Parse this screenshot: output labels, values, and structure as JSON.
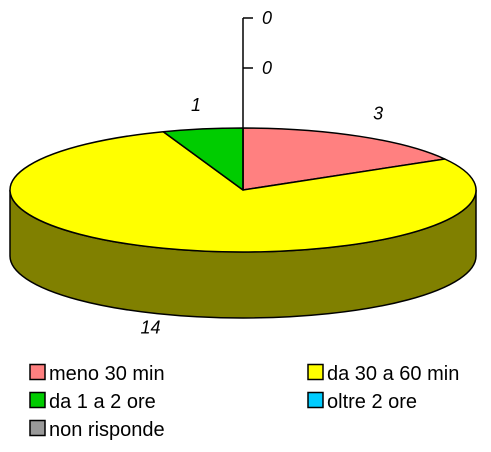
{
  "chart_data": {
    "type": "pie",
    "style": "3d",
    "categories": [
      "meno 30 min",
      "da 30 a 60 min",
      "da 1 a 2 ore",
      "oltre 2 ore",
      "non risponde"
    ],
    "values": [
      3,
      14,
      1,
      0,
      0
    ],
    "data_labels": [
      "3",
      "14",
      "1",
      "0",
      "0"
    ],
    "legend": {
      "placement": "bottom",
      "entries": [
        "meno 30 min",
        "da 30 a 60 min",
        "da 1 a 2 ore",
        "oltre 2 ore",
        "non risponde"
      ]
    },
    "colors": {
      "meno 30 min": "#ff8080",
      "da 30 a 60 min": "#ffff00",
      "da 1 a 2 ore": "#00cc00",
      "oltre 2 ore": "#00ccff",
      "non risponde": "#999999"
    },
    "side_color": "#808000",
    "outline_color": "#000000"
  }
}
